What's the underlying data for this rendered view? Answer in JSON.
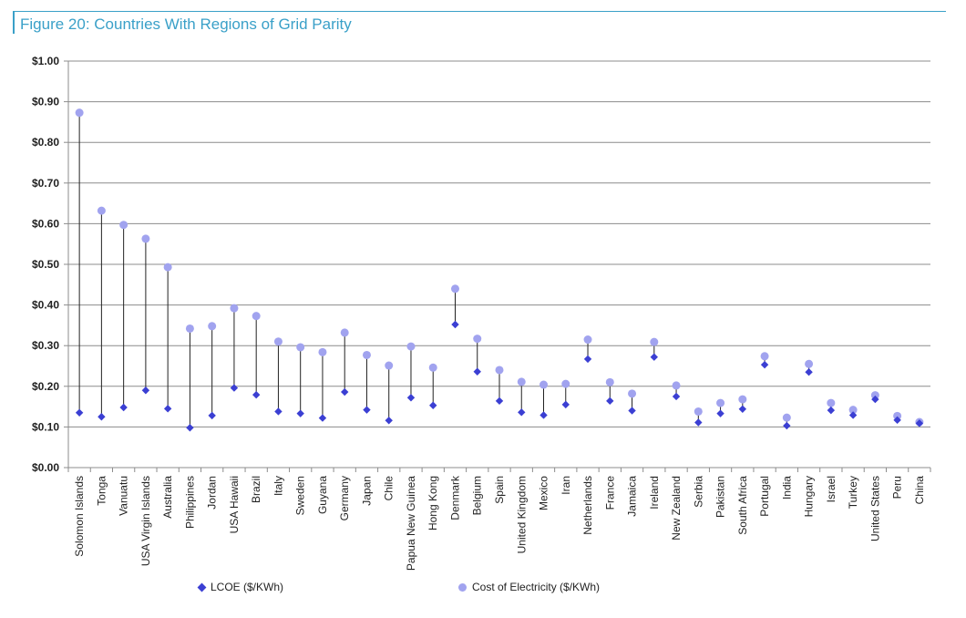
{
  "figure": {
    "title": "Figure 20: Countries With Regions of Grid Parity"
  },
  "colors": {
    "lcoe": "#3b3fd3",
    "cost": "#a1a3ef",
    "accent": "#3aa0c8",
    "grid": "#8c8c8c",
    "stem": "#222222"
  },
  "legend": {
    "lcoe_label": "LCOE ($/KWh)",
    "cost_label": "Cost of Electricity  ($/KWh)"
  },
  "chart_data": {
    "type": "scatter",
    "title": "Figure 20: Countries With Regions of Grid Parity",
    "xlabel": "",
    "ylabel": "",
    "ylim": [
      0,
      1.0
    ],
    "yticks": [
      "$0.00",
      "$0.10",
      "$0.20",
      "$0.30",
      "$0.40",
      "$0.50",
      "$0.60",
      "$0.70",
      "$0.80",
      "$0.90",
      "$1.00"
    ],
    "grid": "horizontal",
    "legend_position": "bottom",
    "categories": [
      "Solomon Islands",
      "Tonga",
      "Vanuatu",
      "USA Virgin Islands",
      "Australia",
      "Philippines",
      "Jordan",
      "USA Hawaii",
      "Brazil",
      "Italy",
      "Sweden",
      "Guyana",
      "Germany",
      "Japan",
      "Chile",
      "Papua New Guinea",
      "Hong Kong",
      "Denmark",
      "Belgium",
      "Spain",
      "United Kingdom",
      "Mexico",
      "Iran",
      "Netherlands",
      "France",
      "Jamaica",
      "Ireland",
      "New Zealand",
      "Serbia",
      "Pakistan",
      "South Africa",
      "Portugal",
      "India",
      "Hungary",
      "Israel",
      "Turkey",
      "United States",
      "Peru",
      "China"
    ],
    "series": [
      {
        "name": "LCOE ($/KWh)",
        "marker": "diamond",
        "values": [
          0.135,
          0.125,
          0.148,
          0.19,
          0.145,
          0.098,
          0.128,
          0.196,
          0.179,
          0.138,
          0.133,
          0.122,
          0.186,
          0.142,
          0.116,
          0.172,
          0.153,
          0.352,
          0.236,
          0.164,
          0.136,
          0.129,
          0.155,
          0.267,
          0.164,
          0.14,
          0.272,
          0.175,
          0.111,
          0.133,
          0.144,
          0.253,
          0.103,
          0.235,
          0.141,
          0.129,
          0.168,
          0.117,
          0.109
        ]
      },
      {
        "name": "Cost of Electricity  ($/KWh)",
        "marker": "circle",
        "values": [
          0.873,
          0.632,
          0.597,
          0.563,
          0.493,
          0.342,
          0.348,
          0.392,
          0.373,
          0.31,
          0.296,
          0.284,
          0.332,
          0.277,
          0.251,
          0.298,
          0.246,
          0.44,
          0.317,
          0.24,
          0.211,
          0.204,
          0.206,
          0.315,
          0.21,
          0.182,
          0.309,
          0.202,
          0.138,
          0.159,
          0.168,
          0.274,
          0.123,
          0.255,
          0.159,
          0.142,
          0.178,
          0.127,
          0.112
        ]
      }
    ]
  }
}
